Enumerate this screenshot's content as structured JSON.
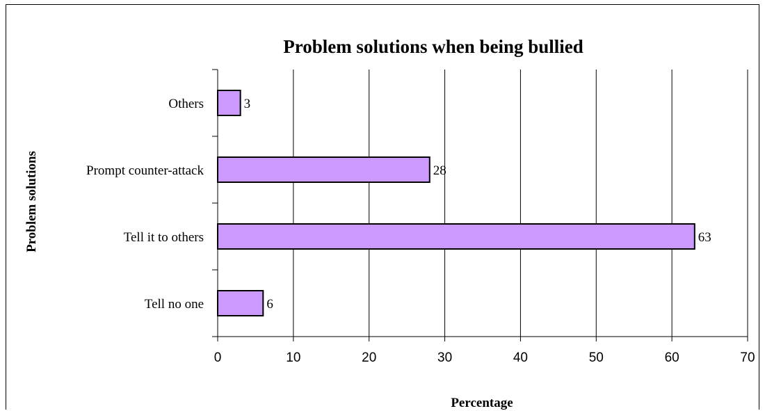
{
  "chart_data": {
    "type": "bar",
    "orientation": "horizontal",
    "title": "Problem solutions when being bullied",
    "xlabel": "Percentage",
    "ylabel": "Problem solutions",
    "categories": [
      "Tell no one",
      "Tell it to others",
      "Prompt counter-attack",
      "Others"
    ],
    "values": [
      6,
      63,
      28,
      3
    ],
    "data_labels": [
      "6",
      "63",
      "28",
      "3"
    ],
    "xlim": [
      0,
      70
    ],
    "xticks": [
      0,
      10,
      20,
      30,
      40,
      50,
      60,
      70
    ],
    "xtick_labels": [
      "0",
      "10",
      "20",
      "30",
      "40",
      "50",
      "60",
      "70"
    ],
    "grid": "vertical",
    "legend": "none",
    "bar_color": "#CC99FF",
    "bar_edge_color": "#000000"
  }
}
